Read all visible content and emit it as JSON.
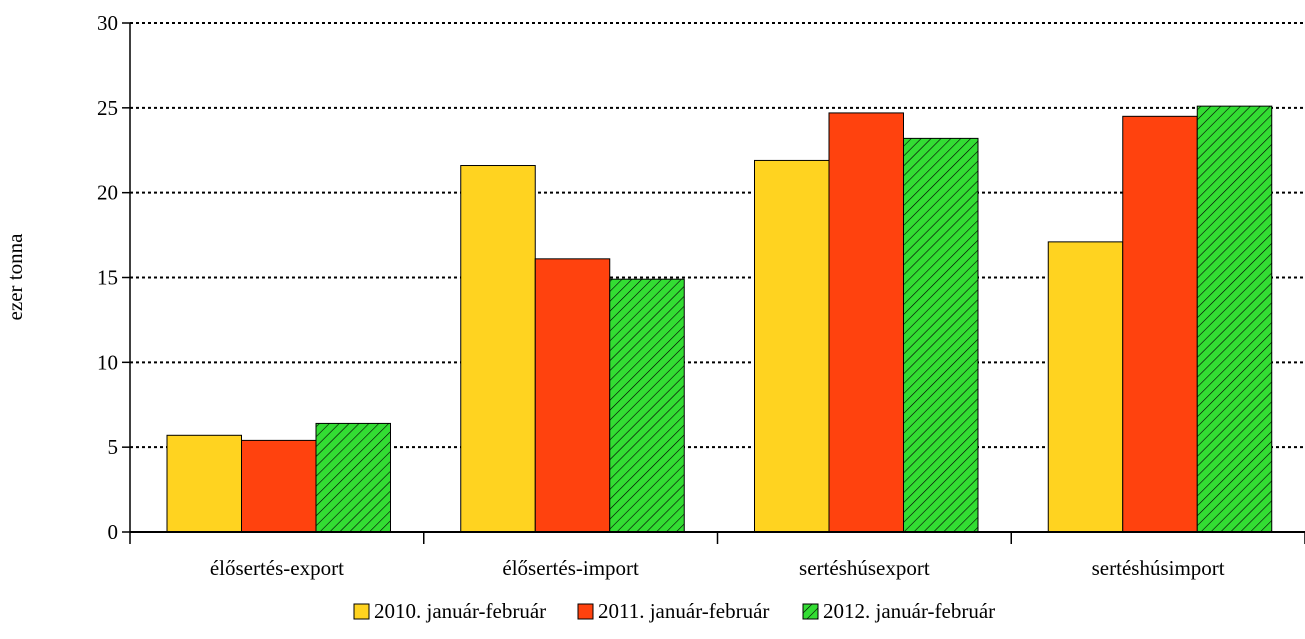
{
  "chart_data": {
    "type": "bar",
    "title": "",
    "xlabel": "",
    "ylabel": "ezer tonna",
    "ylim": [
      0,
      30
    ],
    "yticks": [
      0,
      5,
      10,
      15,
      20,
      25,
      30
    ],
    "grid": true,
    "legend_position": "bottom",
    "categories": [
      "élősertés-export",
      "élősertés-import",
      "sertéshúsexport",
      "sertéshúsimport"
    ],
    "series": [
      {
        "name": "2010. január-február",
        "color": "#FFD320",
        "pattern": "solid",
        "values": [
          5.7,
          21.6,
          21.9,
          17.1
        ]
      },
      {
        "name": "2011. január-február",
        "color": "#FF420E",
        "pattern": "solid",
        "values": [
          5.4,
          16.1,
          24.7,
          24.5
        ]
      },
      {
        "name": "2012. január-február",
        "color": "#33DD33",
        "pattern": "hatched",
        "values": [
          6.4,
          14.9,
          23.2,
          25.1
        ]
      }
    ]
  }
}
